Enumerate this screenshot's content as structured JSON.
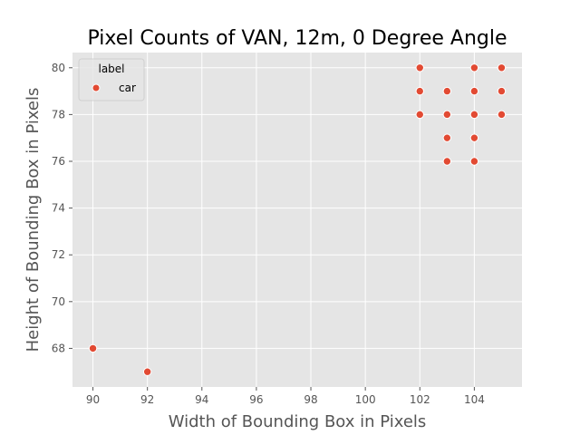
{
  "chart_data": {
    "type": "scatter",
    "title": "Pixel Counts of VAN, 12m, 0 Degree Angle",
    "xlabel": "Width of Bounding Box in Pixels",
    "ylabel": "Height of Bounding Box in Pixels",
    "xlim": [
      89.25,
      105.75
    ],
    "ylim": [
      66.35,
      80.65
    ],
    "xticks": [
      90,
      92,
      94,
      96,
      98,
      100,
      102,
      104
    ],
    "yticks": [
      68,
      70,
      72,
      74,
      76,
      78,
      80
    ],
    "grid": true,
    "legend": {
      "title": "label",
      "position": "top-left",
      "entries": [
        "car"
      ]
    },
    "series": [
      {
        "name": "car",
        "color": "#e24a33",
        "points": [
          {
            "x": 90,
            "y": 68
          },
          {
            "x": 92,
            "y": 67
          },
          {
            "x": 102,
            "y": 80
          },
          {
            "x": 102,
            "y": 79
          },
          {
            "x": 102,
            "y": 78
          },
          {
            "x": 103,
            "y": 79
          },
          {
            "x": 103,
            "y": 78
          },
          {
            "x": 103,
            "y": 77
          },
          {
            "x": 103,
            "y": 76
          },
          {
            "x": 104,
            "y": 80
          },
          {
            "x": 104,
            "y": 79
          },
          {
            "x": 104,
            "y": 78
          },
          {
            "x": 104,
            "y": 77
          },
          {
            "x": 104,
            "y": 76
          },
          {
            "x": 105,
            "y": 80
          },
          {
            "x": 105,
            "y": 79
          },
          {
            "x": 105,
            "y": 78
          }
        ]
      }
    ]
  },
  "colors": {
    "plot_background": "#e5e5e5",
    "grid": "#ffffff",
    "marker": "#e24a33",
    "marker_edge": "#ffffff"
  }
}
